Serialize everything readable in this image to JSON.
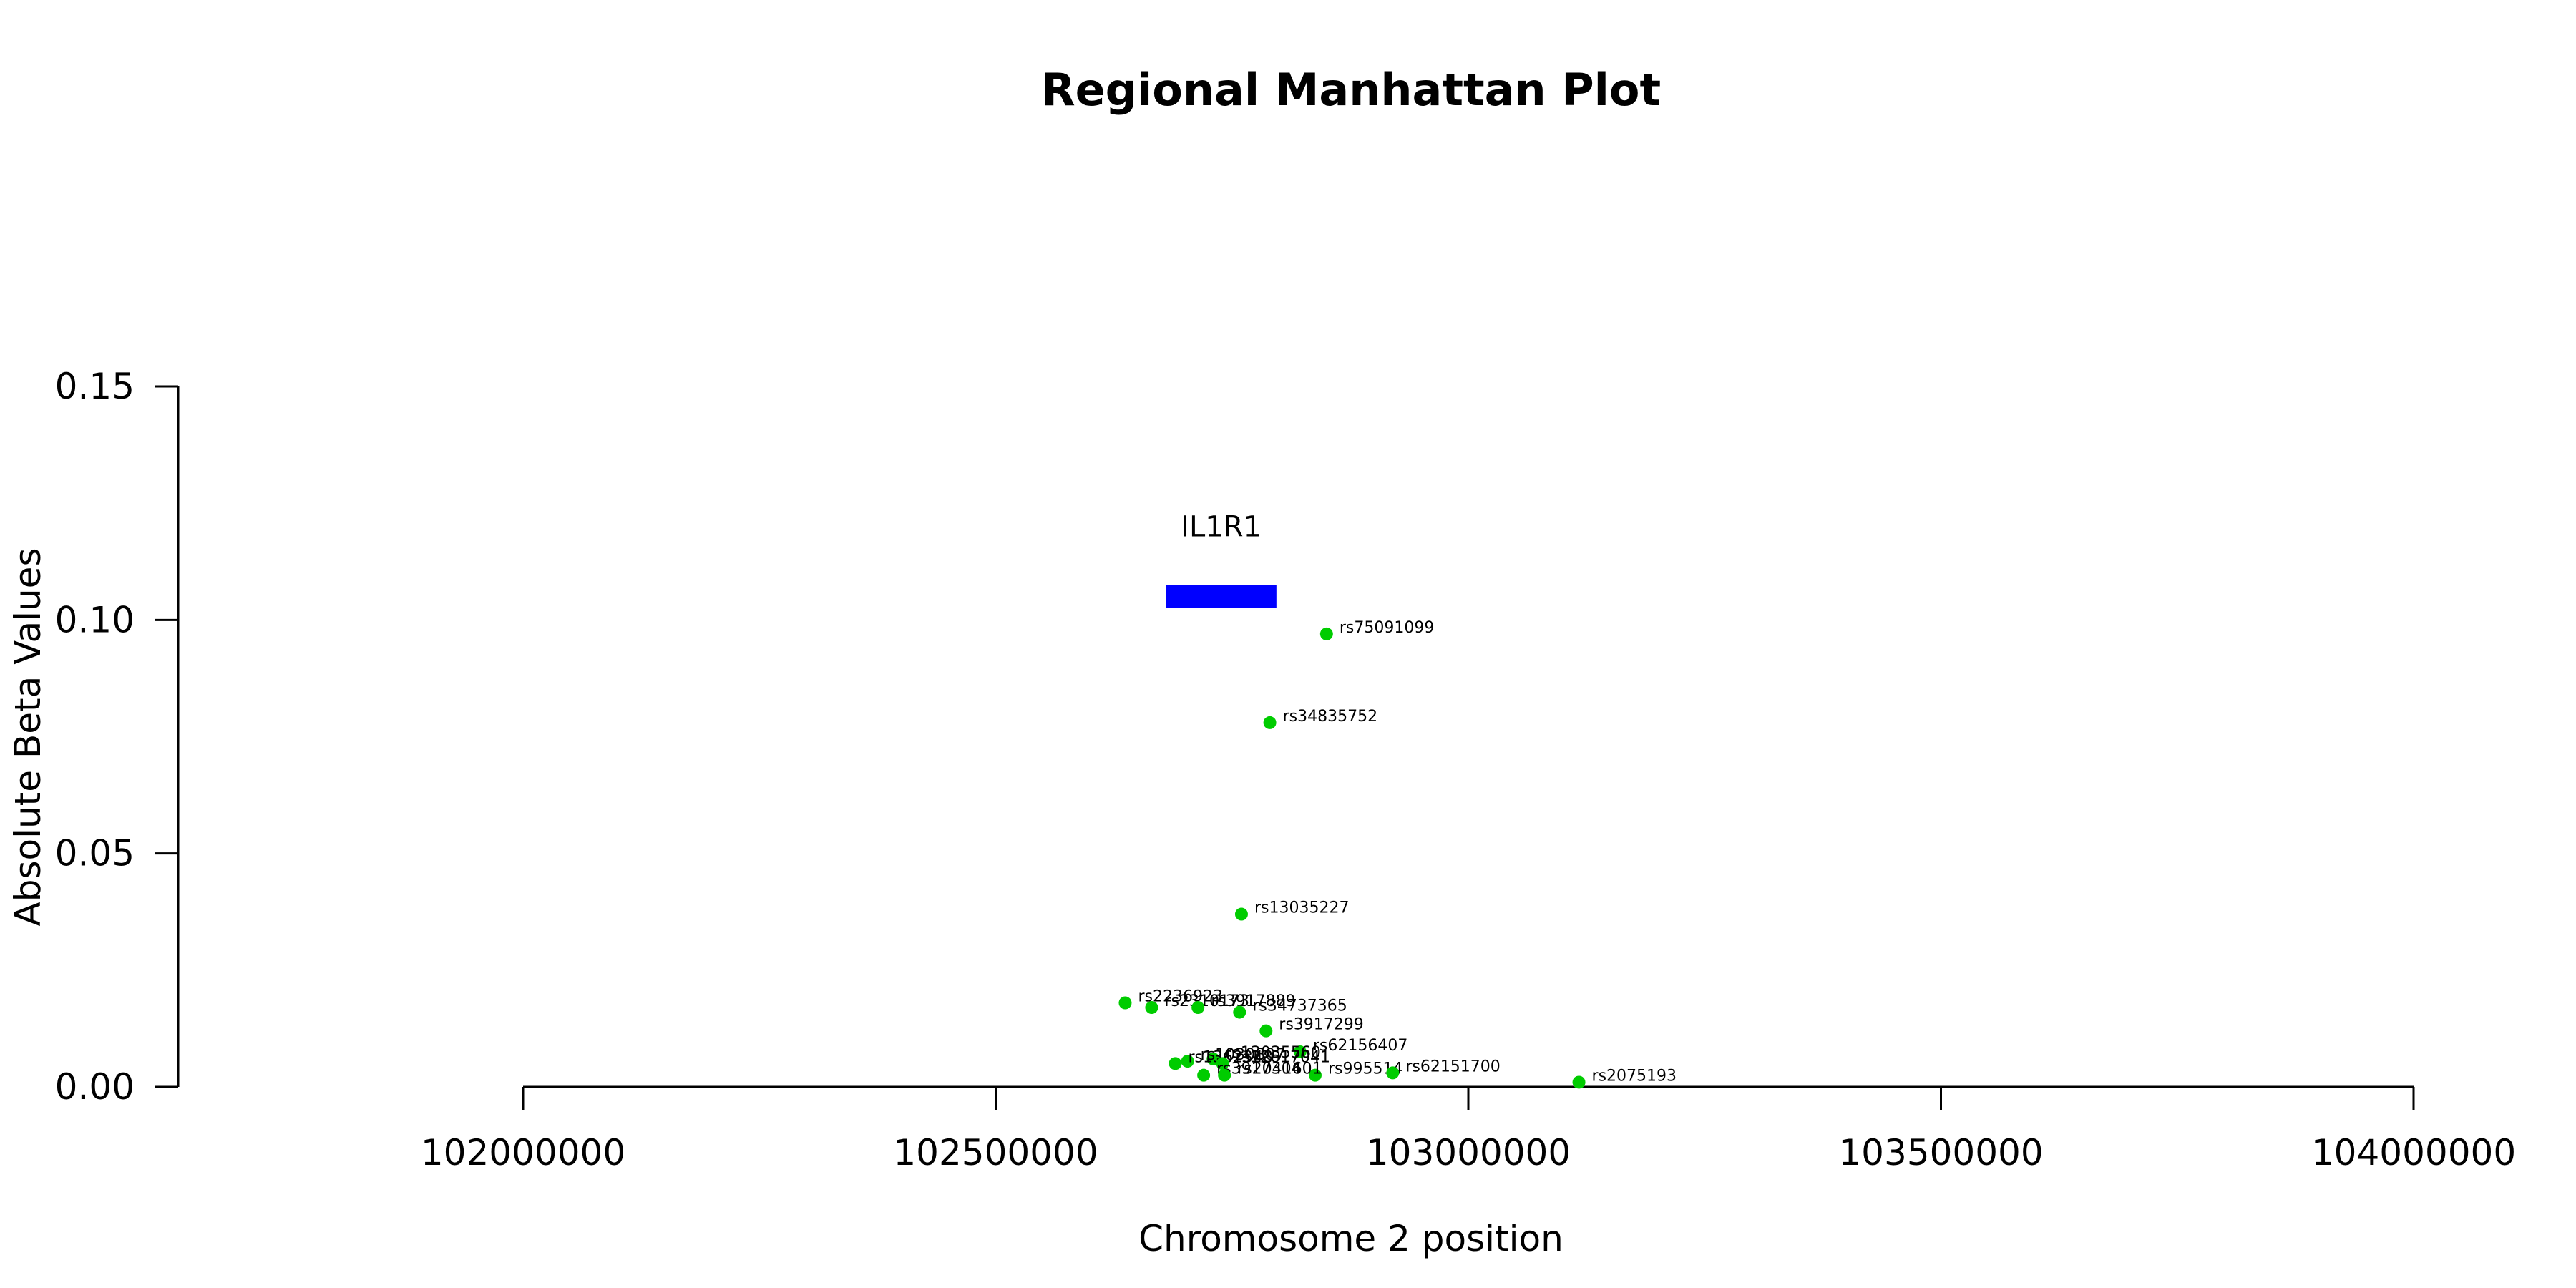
{
  "chart_data": {
    "type": "scatter",
    "title": "Regional Manhattan Plot",
    "xlabel": "Chromosome 2 position",
    "ylabel": "Absolute Beta Values",
    "xlim": [
      102000000,
      104000000
    ],
    "ylim": [
      0,
      0.15
    ],
    "x_ticks": [
      102000000,
      102500000,
      103000000,
      103500000,
      104000000
    ],
    "x_tick_labels": [
      "102000000",
      "102500000",
      "103000000",
      "103500000",
      "104000000"
    ],
    "y_ticks": [
      0,
      0.05,
      0.1,
      0.15
    ],
    "y_tick_labels": [
      "0.00",
      "0.05",
      "0.10",
      "0.15"
    ],
    "grid": false,
    "point_color": "#00cc00",
    "gene": {
      "name": "IL1R1",
      "start": 102680000,
      "end": 102797000,
      "y": 0.105,
      "color": "#0000ff"
    },
    "points": [
      {
        "snp": "rs75091099",
        "x": 102850000,
        "y": 0.097
      },
      {
        "snp": "rs34835752",
        "x": 102790000,
        "y": 0.078
      },
      {
        "snp": "rs13035227",
        "x": 102760000,
        "y": 0.037
      },
      {
        "snp": "rs2236923",
        "x": 102637000,
        "y": 0.018
      },
      {
        "snp": "rs2310173",
        "x": 102665000,
        "y": 0.017
      },
      {
        "snp": "rs3917889",
        "x": 102714000,
        "y": 0.017
      },
      {
        "snp": "rs34737365",
        "x": 102758000,
        "y": 0.016
      },
      {
        "snp": "rs3917299",
        "x": 102786000,
        "y": 0.012
      },
      {
        "snp": "rs62156407",
        "x": 102822000,
        "y": 0.0075
      },
      {
        "snp": "rs13035560",
        "x": 102730000,
        "y": 0.006
      },
      {
        "snp": "rs1030807",
        "x": 102703000,
        "y": 0.0055
      },
      {
        "snp": "rs1362348",
        "x": 102690000,
        "y": 0.005
      },
      {
        "snp": "rs12617041",
        "x": 102740000,
        "y": 0.005
      },
      {
        "snp": "rs995514",
        "x": 102838000,
        "y": 0.0025
      },
      {
        "snp": "rs62151700",
        "x": 102920000,
        "y": 0.003
      },
      {
        "snp": "rs3917304",
        "x": 102720000,
        "y": 0.0025
      },
      {
        "snp": "rs2041601",
        "x": 102742000,
        "y": 0.0025
      },
      {
        "snp": "rs2075193",
        "x": 103117000,
        "y": 0.001
      }
    ]
  }
}
